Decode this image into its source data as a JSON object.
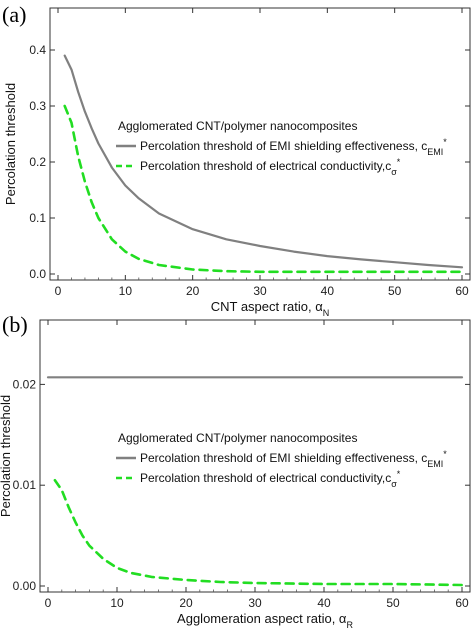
{
  "chart_data": [
    {
      "panel_label": "(a)",
      "type": "line",
      "xlabel": "CNT aspect ratio, α",
      "xlabel_sub": "N",
      "ylabel": "Percolation threshold",
      "xlim": [
        0,
        60
      ],
      "ylim": [
        0,
        0.45
      ],
      "xticks": [
        "0",
        "10",
        "20",
        "30",
        "40",
        "50",
        "60"
      ],
      "yticks": [
        "0.0",
        "0.1",
        "0.2",
        "0.3",
        "0.4"
      ],
      "legend_title": "Agglomerated CNT/polymer nanocomposites",
      "series": [
        {
          "name": "Percolation threshold of EMI shielding effectiveness, c",
          "name_sub": "EMI",
          "name_sup": "*",
          "color": "#808080",
          "style": "solid",
          "x": [
            1,
            2,
            3,
            4,
            5,
            6,
            8,
            10,
            12,
            15,
            20,
            25,
            30,
            35,
            40,
            45,
            50,
            55,
            60
          ],
          "y": [
            0.39,
            0.365,
            0.325,
            0.29,
            0.26,
            0.233,
            0.19,
            0.158,
            0.135,
            0.108,
            0.08,
            0.062,
            0.05,
            0.04,
            0.032,
            0.026,
            0.021,
            0.016,
            0.012
          ]
        },
        {
          "name": "Percolation threshold of electrical conductivity,c",
          "name_sub": "σ",
          "name_sup": "*",
          "color": "#22dd22",
          "style": "dashed",
          "x": [
            1,
            2,
            3,
            4,
            5,
            6,
            8,
            10,
            12,
            15,
            20,
            25,
            30,
            40,
            50,
            60
          ],
          "y": [
            0.3,
            0.27,
            0.21,
            0.165,
            0.128,
            0.1,
            0.062,
            0.04,
            0.027,
            0.016,
            0.008,
            0.005,
            0.004,
            0.004,
            0.004,
            0.004
          ]
        }
      ]
    },
    {
      "panel_label": "(b)",
      "type": "line",
      "xlabel": "Agglomeration aspect ratio, α",
      "xlabel_sub": "R",
      "ylabel": "Percolation threshold",
      "xlim": [
        0,
        60
      ],
      "ylim": [
        0,
        0.025
      ],
      "xticks": [
        "0",
        "10",
        "20",
        "30",
        "40",
        "50",
        "60"
      ],
      "yticks": [
        "0.00",
        "0.01",
        "0.02"
      ],
      "legend_title": "Agglomerated CNT/polymer nanocomposites",
      "series": [
        {
          "name": "Percolation threshold of EMI shielding effectiveness, c",
          "name_sub": "EMI",
          "name_sup": "*",
          "color": "#808080",
          "style": "solid",
          "x": [
            0,
            60
          ],
          "y": [
            0.0207,
            0.0207
          ]
        },
        {
          "name": "Percolation threshold of electrical conductivity,c",
          "name_sub": "σ",
          "name_sup": "*",
          "color": "#22dd22",
          "style": "dashed",
          "x": [
            1,
            2,
            3,
            4,
            5,
            6,
            8,
            10,
            12,
            15,
            20,
            25,
            30,
            40,
            50,
            60
          ],
          "y": [
            0.0105,
            0.0095,
            0.0078,
            0.0063,
            0.005,
            0.004,
            0.0027,
            0.0018,
            0.0013,
            0.0009,
            0.0006,
            0.0004,
            0.0003,
            0.0002,
            0.0002,
            0.0001
          ]
        }
      ]
    }
  ]
}
